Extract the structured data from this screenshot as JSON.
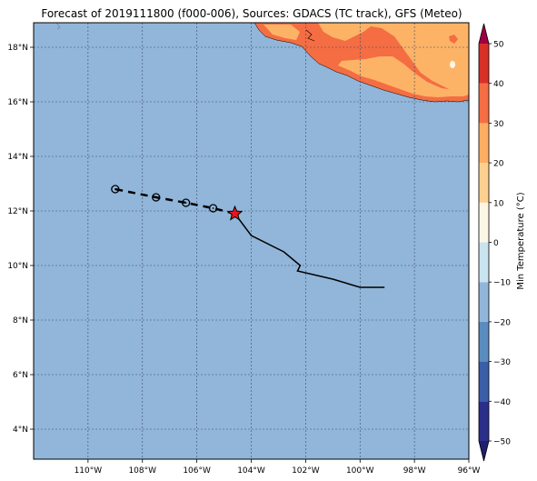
{
  "title": "Forecast of 2019111800 (f000-006), Sources: GDACS (TC track), GFS (Meteo)",
  "map": {
    "lon_range": [
      -112,
      -96
    ],
    "lat_range": [
      2.9,
      18.9
    ],
    "x_ticks": [
      {
        "value": -110,
        "label": "110°W"
      },
      {
        "value": -108,
        "label": "108°W"
      },
      {
        "value": -106,
        "label": "106°W"
      },
      {
        "value": -104,
        "label": "104°W"
      },
      {
        "value": -102,
        "label": "102°W"
      },
      {
        "value": -100,
        "label": "100°W"
      },
      {
        "value": -98,
        "label": "98°W"
      },
      {
        "value": -96,
        "label": "96°W"
      }
    ],
    "y_ticks": [
      {
        "value": 4,
        "label": "4°N"
      },
      {
        "value": 6,
        "label": "6°N"
      },
      {
        "value": 8,
        "label": "8°N"
      },
      {
        "value": 10,
        "label": "10°N"
      },
      {
        "value": 12,
        "label": "12°N"
      },
      {
        "value": 14,
        "label": "14°N"
      },
      {
        "value": 16,
        "label": "16°N"
      },
      {
        "value": 18,
        "label": "18°N"
      }
    ],
    "grid": true,
    "ocean_color": "#91b6d9"
  },
  "track": {
    "past": [
      [
        -99.1,
        9.2
      ],
      [
        -100.0,
        9.2
      ],
      [
        -101.0,
        9.5
      ],
      [
        -102.3,
        9.8
      ],
      [
        -102.2,
        10.0
      ],
      [
        -102.8,
        10.5
      ],
      [
        -104.0,
        11.1
      ],
      [
        -104.6,
        11.9
      ]
    ],
    "current": {
      "lon": -104.6,
      "lat": 11.9,
      "color": "#e8141b"
    },
    "forecast": [
      {
        "lon": -105.4,
        "lat": 12.1
      },
      {
        "lon": -106.4,
        "lat": 12.3
      },
      {
        "lon": -107.5,
        "lat": 12.5
      },
      {
        "lon": -109.0,
        "lat": 12.8
      }
    ]
  },
  "colorbar": {
    "label": "Min Temperature (°C)",
    "min": -50,
    "max": 50,
    "ticks": [
      {
        "value": 50,
        "label": "50"
      },
      {
        "value": 40,
        "label": "40"
      },
      {
        "value": 30,
        "label": "30"
      },
      {
        "value": 20,
        "label": "20"
      },
      {
        "value": 10,
        "label": "10"
      },
      {
        "value": 0,
        "label": "0"
      },
      {
        "value": -10,
        "label": "−10"
      },
      {
        "value": -20,
        "label": "−20"
      },
      {
        "value": -30,
        "label": "−30"
      },
      {
        "value": -40,
        "label": "−40"
      },
      {
        "value": -50,
        "label": "−50"
      }
    ],
    "bands": [
      {
        "from": -55,
        "to": -50,
        "color": "#1e1f6e"
      },
      {
        "from": -50,
        "to": -40,
        "color": "#2b2f8a"
      },
      {
        "from": -40,
        "to": -30,
        "color": "#3a5ea8"
      },
      {
        "from": -30,
        "to": -20,
        "color": "#5a8cc0"
      },
      {
        "from": -20,
        "to": -10,
        "color": "#91b6d9"
      },
      {
        "from": -10,
        "to": 0,
        "color": "#c9e3ef"
      },
      {
        "from": 0,
        "to": 10,
        "color": "#fdf6e6"
      },
      {
        "from": 10,
        "to": 20,
        "color": "#fed08f"
      },
      {
        "from": 20,
        "to": 30,
        "color": "#fdae61"
      },
      {
        "from": 30,
        "to": 40,
        "color": "#f46d43"
      },
      {
        "from": 40,
        "to": 50,
        "color": "#d73027"
      },
      {
        "from": 50,
        "to": 55,
        "color": "#9e0142"
      }
    ]
  },
  "land": {
    "outer_color": "#f46d43",
    "inner_color": "#fdb366"
  }
}
